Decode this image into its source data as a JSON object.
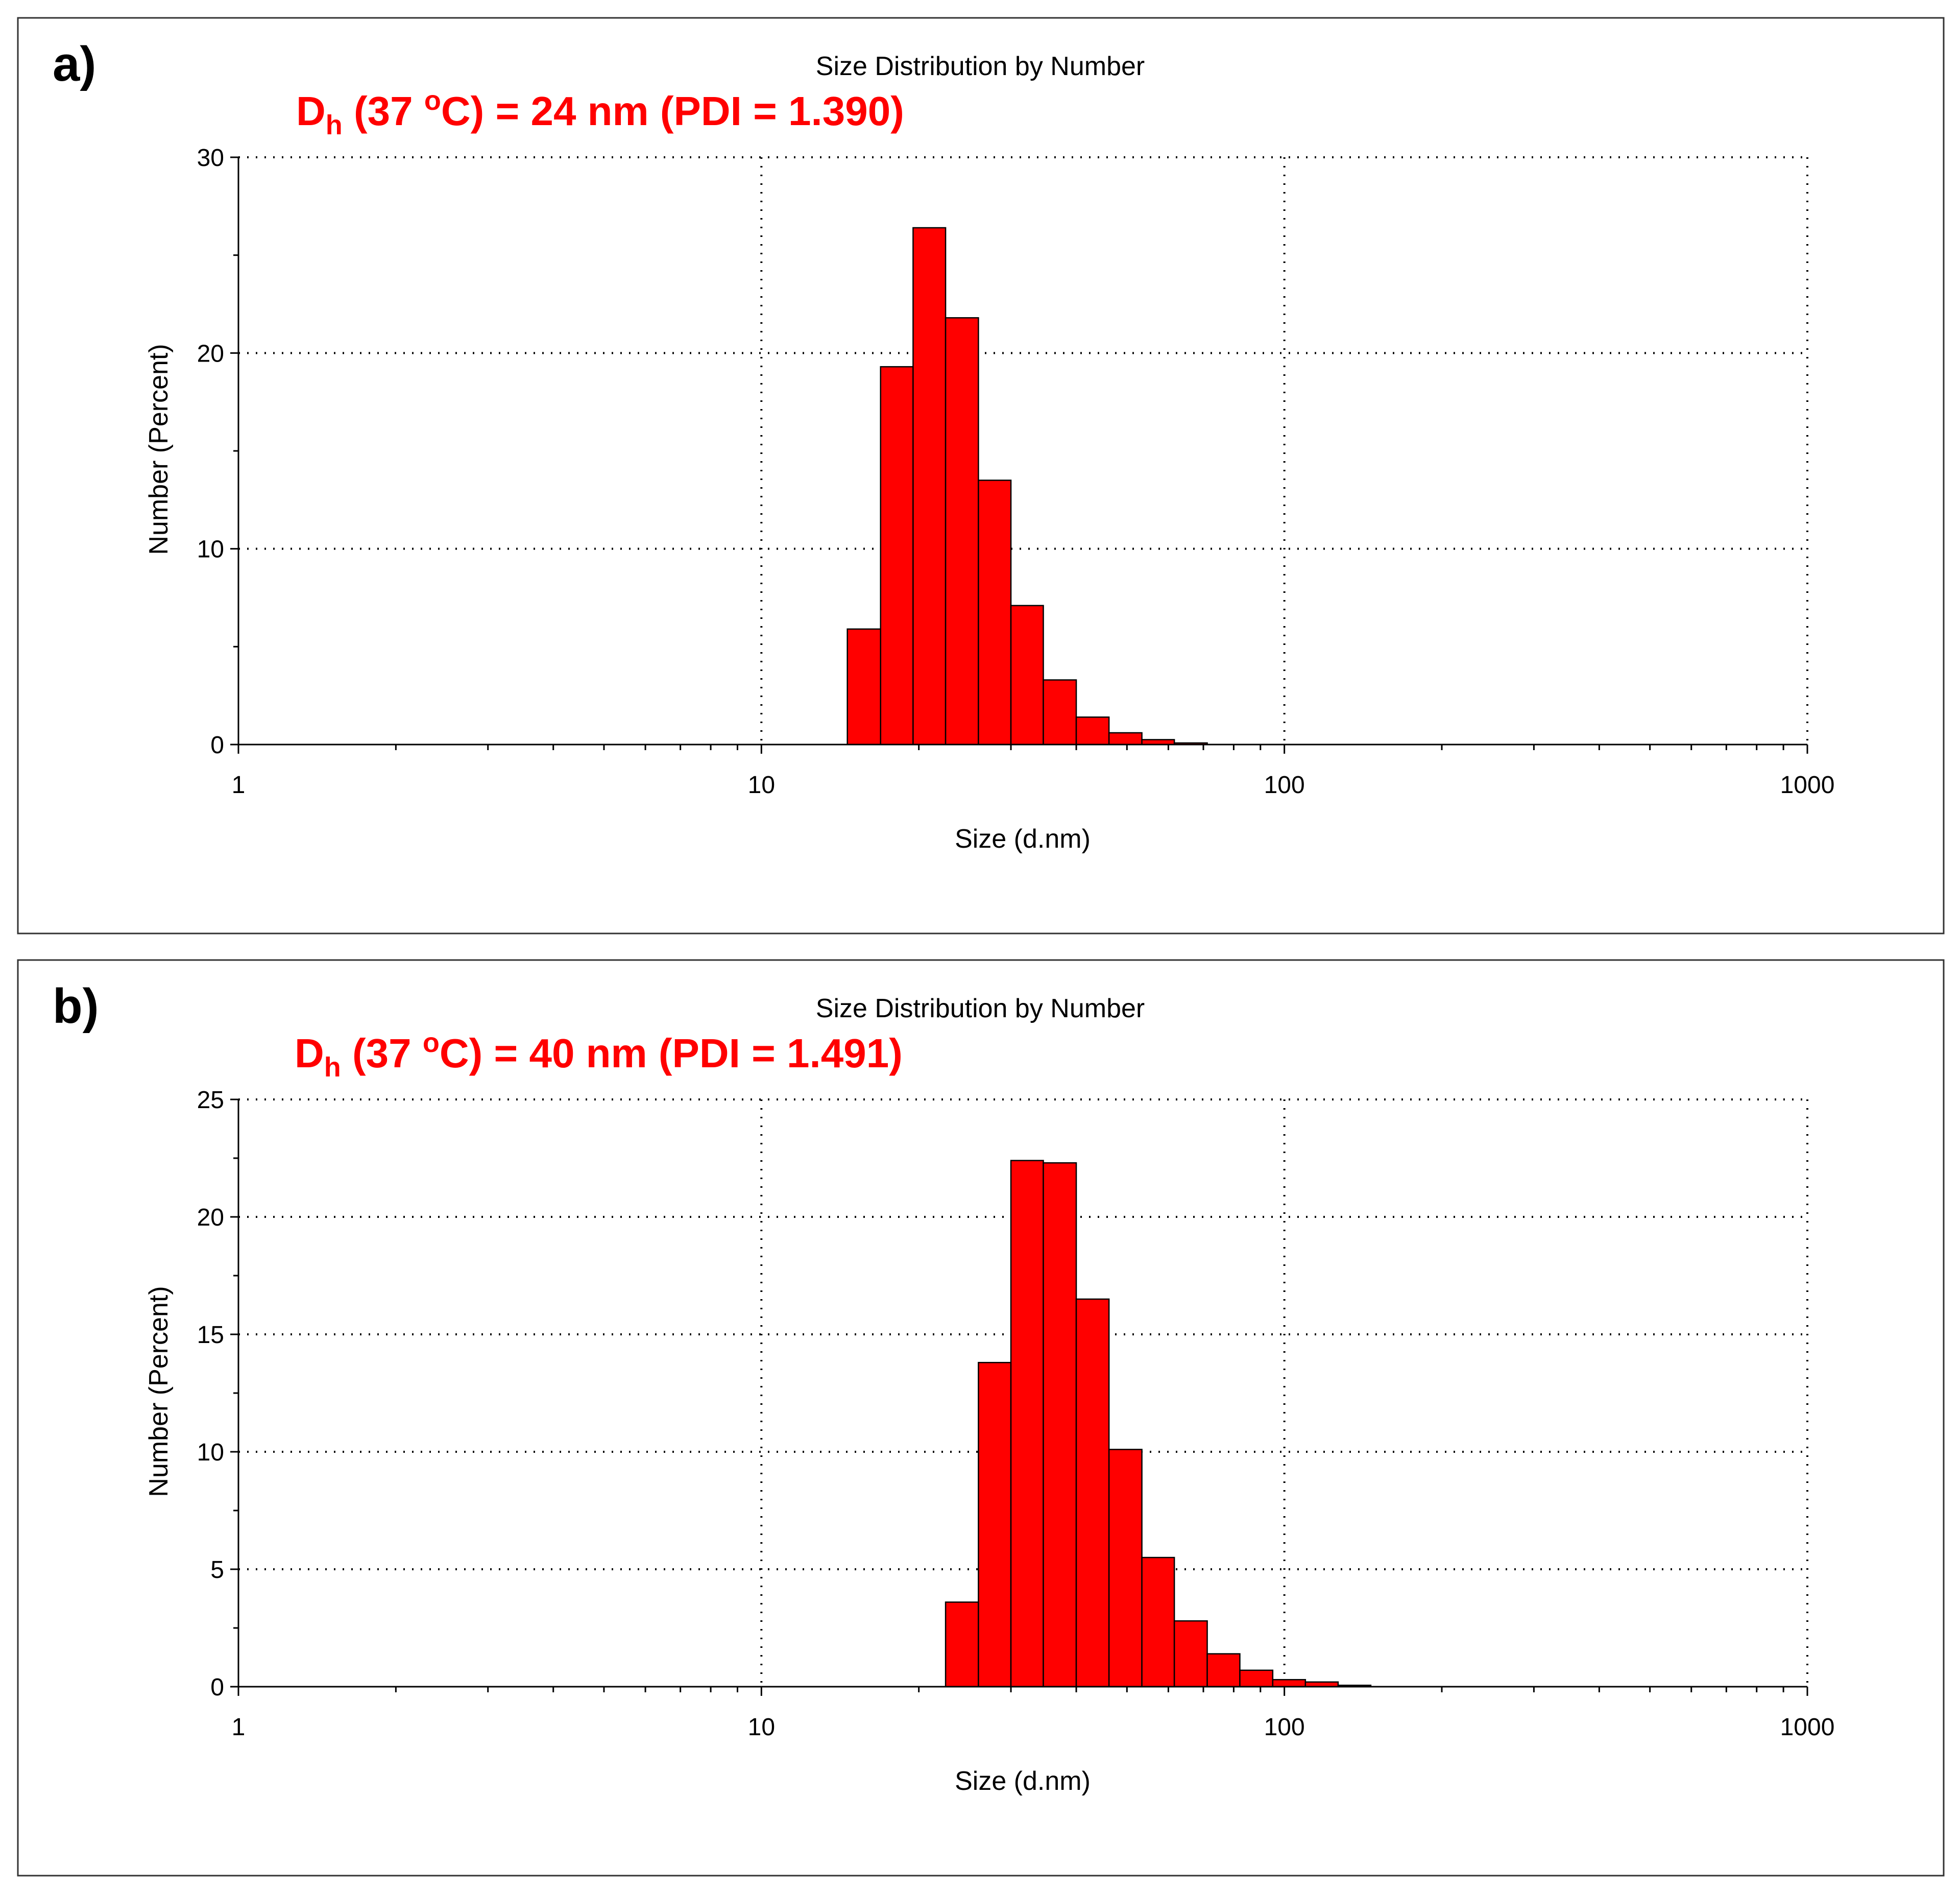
{
  "bar_color": "#ff0000",
  "bar_edge_color": "#000000",
  "annotation_color": "#ff0000",
  "chart_data": [
    {
      "type": "bar",
      "panel_label": "a)",
      "title": "Size Distribution by Number",
      "annotation": {
        "prefix": "D",
        "subscript": "h",
        "open": " (37 ",
        "superscript": "o",
        "rest": "C) = 24 nm (PDI = 1.390)"
      },
      "xlabel": "Size (d.nm)",
      "ylabel": "Number (Percent)",
      "xscale": "log",
      "xlim": [
        1,
        1000
      ],
      "ylim": [
        0,
        30
      ],
      "xticks": [
        "1",
        "10",
        "100",
        "1000"
      ],
      "yticks": [
        "0",
        "10",
        "20",
        "30"
      ],
      "grid": true,
      "bins": [
        {
          "lower": 14.6,
          "upper": 16.9,
          "value": 5.9
        },
        {
          "lower": 16.9,
          "upper": 19.5,
          "value": 19.3
        },
        {
          "lower": 19.5,
          "upper": 22.5,
          "value": 26.4
        },
        {
          "lower": 22.5,
          "upper": 26.0,
          "value": 21.8
        },
        {
          "lower": 26.0,
          "upper": 30.0,
          "value": 13.5
        },
        {
          "lower": 30.0,
          "upper": 34.6,
          "value": 7.1
        },
        {
          "lower": 34.6,
          "upper": 40.0,
          "value": 3.3
        },
        {
          "lower": 40.0,
          "upper": 46.2,
          "value": 1.4
        },
        {
          "lower": 46.2,
          "upper": 53.4,
          "value": 0.6
        },
        {
          "lower": 53.4,
          "upper": 61.6,
          "value": 0.25
        },
        {
          "lower": 61.6,
          "upper": 71.2,
          "value": 0.08
        }
      ]
    },
    {
      "type": "bar",
      "panel_label": "b)",
      "title": "Size Distribution by Number",
      "annotation": {
        "prefix": "D",
        "subscript": "h",
        "open": " (37 ",
        "superscript": "o",
        "rest": "C) = 40 nm (PDI = 1.491)"
      },
      "xlabel": "Size (d.nm)",
      "ylabel": "Number (Percent)",
      "xscale": "log",
      "xlim": [
        1,
        1000
      ],
      "ylim": [
        0,
        25
      ],
      "xticks": [
        "1",
        "10",
        "100",
        "1000"
      ],
      "yticks": [
        "0",
        "5",
        "10",
        "15",
        "20",
        "25"
      ],
      "grid": true,
      "bins": [
        {
          "lower": 22.5,
          "upper": 26.0,
          "value": 3.6
        },
        {
          "lower": 26.0,
          "upper": 30.0,
          "value": 13.8
        },
        {
          "lower": 30.0,
          "upper": 34.6,
          "value": 22.4
        },
        {
          "lower": 34.6,
          "upper": 40.0,
          "value": 22.3
        },
        {
          "lower": 40.0,
          "upper": 46.2,
          "value": 16.5
        },
        {
          "lower": 46.2,
          "upper": 53.4,
          "value": 10.1
        },
        {
          "lower": 53.4,
          "upper": 61.6,
          "value": 5.5
        },
        {
          "lower": 61.6,
          "upper": 71.2,
          "value": 2.8
        },
        {
          "lower": 71.2,
          "upper": 82.2,
          "value": 1.4
        },
        {
          "lower": 82.2,
          "upper": 95.0,
          "value": 0.7
        },
        {
          "lower": 95.0,
          "upper": 109.7,
          "value": 0.3
        },
        {
          "lower": 109.7,
          "upper": 126.7,
          "value": 0.2
        },
        {
          "lower": 126.7,
          "upper": 146.3,
          "value": 0.06
        }
      ]
    }
  ]
}
